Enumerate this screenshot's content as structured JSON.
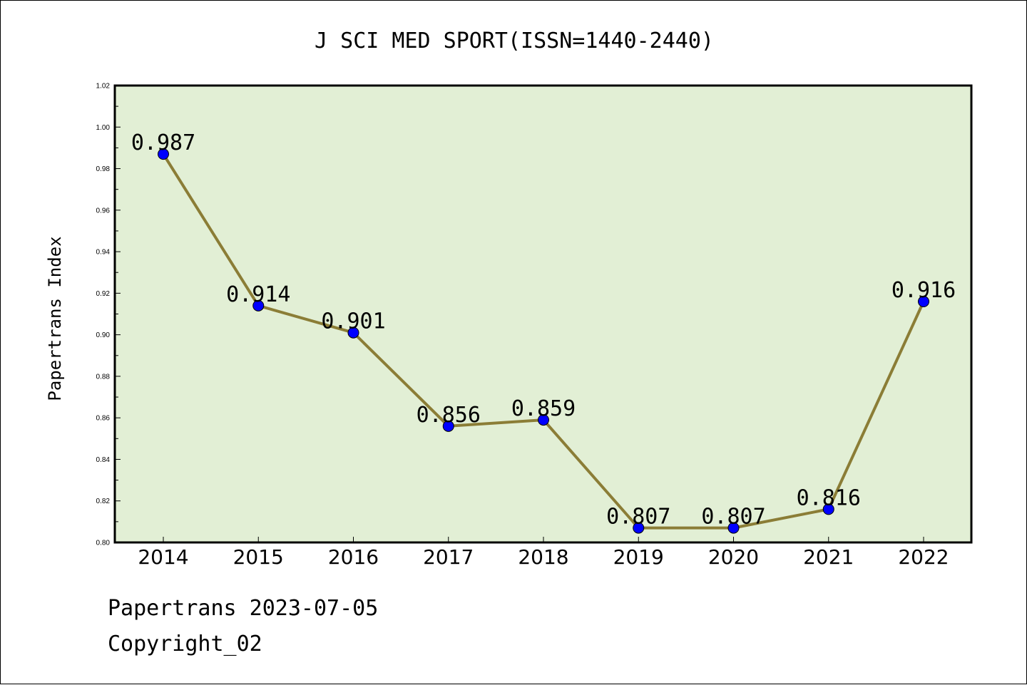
{
  "footer": {
    "line1": "Papertrans 2023-07-05",
    "line2": "Copyright_02"
  },
  "chart_data": {
    "type": "line",
    "title": "J SCI MED SPORT(ISSN=1440-2440)",
    "xlabel": "",
    "ylabel": "Papertrans Index",
    "categories": [
      "2014",
      "2015",
      "2016",
      "2017",
      "2018",
      "2019",
      "2020",
      "2021",
      "2022"
    ],
    "series": [
      {
        "values": [
          0.987,
          0.914,
          0.901,
          0.856,
          0.859,
          0.807,
          0.807,
          0.816,
          0.916
        ]
      }
    ],
    "data_labels": [
      "0.987",
      "0.914",
      "0.901",
      "0.856",
      "0.859",
      "0.807",
      "0.807",
      "0.816",
      "0.916"
    ],
    "ylim": [
      0.8,
      1.02
    ],
    "yticks": [
      "0.80",
      "0.82",
      "0.84",
      "0.86",
      "0.88",
      "0.90",
      "0.92",
      "0.94",
      "0.96",
      "0.98",
      "1.00",
      "1.02"
    ],
    "grid": false,
    "legend": "none",
    "colors": {
      "plot_background": "#e2efd5",
      "line": "#8b7d36",
      "marker": "#0000ff"
    }
  }
}
